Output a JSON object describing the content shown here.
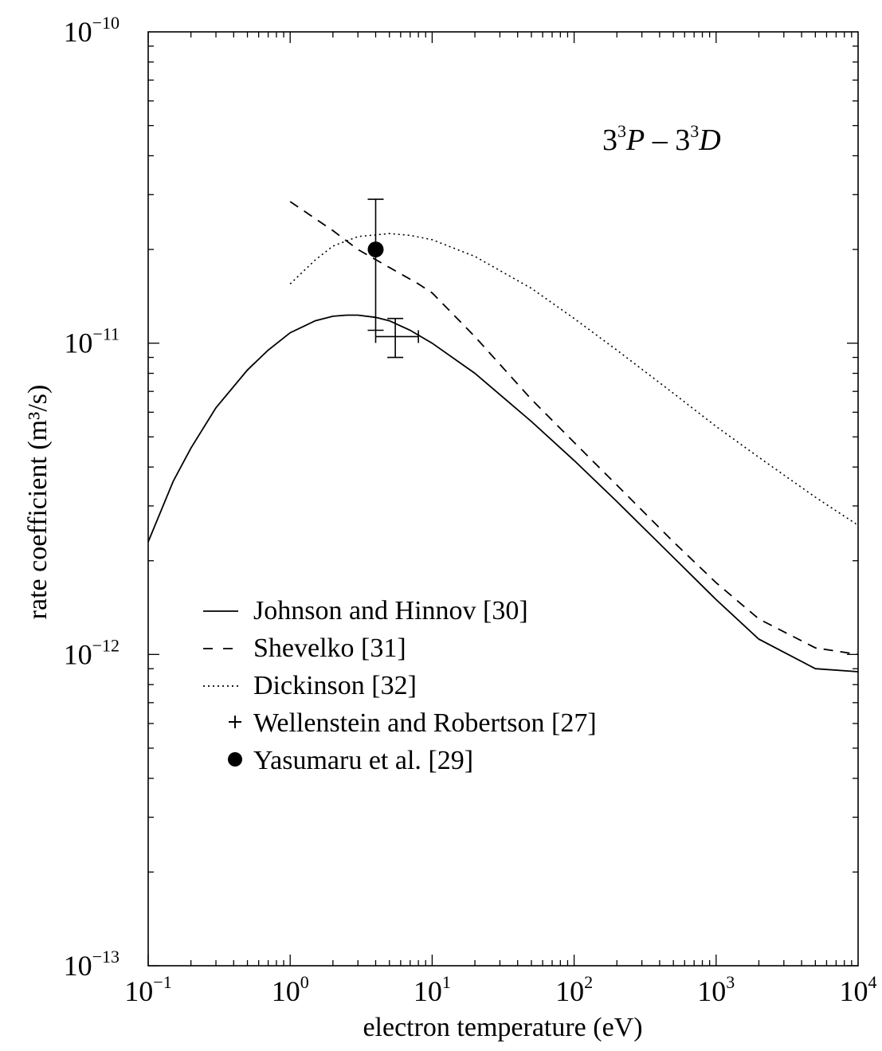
{
  "chart_data": {
    "type": "line",
    "title": "",
    "annotation": {
      "base": "3",
      "sup1": "3",
      "p": "P",
      "dash": " – ",
      "base2": "3",
      "sup2": "3",
      "d": "D"
    },
    "xlabel": "electron temperature (eV)",
    "ylabel": "rate coefficient (m³/s)",
    "x_scale": "log",
    "y_scale": "log",
    "xlim": [
      0.1,
      10000
    ],
    "ylim": [
      1e-13,
      1e-10
    ],
    "x_ticks": [
      {
        "value": 0.1,
        "base": "10",
        "exp": "−1"
      },
      {
        "value": 1,
        "base": "10",
        "exp": "0"
      },
      {
        "value": 10,
        "base": "10",
        "exp": "1"
      },
      {
        "value": 100,
        "base": "10",
        "exp": "2"
      },
      {
        "value": 1000,
        "base": "10",
        "exp": "3"
      },
      {
        "value": 10000,
        "base": "10",
        "exp": "4"
      }
    ],
    "y_ticks": [
      {
        "value": 1e-10,
        "base": "10",
        "exp": "−10"
      },
      {
        "value": 1e-11,
        "base": "10",
        "exp": "−11"
      },
      {
        "value": 1e-12,
        "base": "10",
        "exp": "−12"
      },
      {
        "value": 1e-13,
        "base": "10",
        "exp": "−13"
      }
    ],
    "grid": false,
    "legend_position": "lower-left",
    "series": [
      {
        "name": "Johnson and Hinnov [30]",
        "style": "solid",
        "x": [
          0.1,
          0.15,
          0.2,
          0.3,
          0.5,
          0.7,
          1,
          1.5,
          2,
          2.5,
          3,
          4,
          5,
          7,
          10,
          20,
          50,
          100,
          200,
          500,
          1000,
          2000,
          5000,
          10000
        ],
        "y": [
          2.3e-12,
          3.6e-12,
          4.6e-12,
          6.2e-12,
          8.2e-12,
          9.5e-12,
          1.08e-11,
          1.18e-11,
          1.22e-11,
          1.23e-11,
          1.23e-11,
          1.21e-11,
          1.18e-11,
          1.1e-11,
          1e-11,
          8e-12,
          5.6e-12,
          4.2e-12,
          3.1e-12,
          2.05e-12,
          1.5e-12,
          1.12e-12,
          9e-13,
          8.8e-13
        ]
      },
      {
        "name": "Shevelko [31]",
        "style": "dashed",
        "x": [
          1,
          2,
          3,
          5,
          8,
          10,
          20,
          50,
          100,
          200,
          500,
          1000,
          2000,
          5000,
          10000
        ],
        "y": [
          2.85e-11,
          2.3e-11,
          2e-11,
          1.75e-11,
          1.55e-11,
          1.45e-11,
          1.05e-11,
          6.6e-12,
          4.8e-12,
          3.5e-12,
          2.3e-12,
          1.7e-12,
          1.3e-12,
          1.05e-12,
          1e-12
        ]
      },
      {
        "name": "Dickinson [32]",
        "style": "dotted",
        "x": [
          1,
          1.5,
          2,
          3,
          5,
          7,
          10,
          20,
          50,
          100,
          200,
          500,
          1000,
          2000,
          5000,
          10000
        ],
        "y": [
          1.55e-11,
          1.85e-11,
          2.05e-11,
          2.2e-11,
          2.25e-11,
          2.22e-11,
          2.15e-11,
          1.9e-11,
          1.5e-11,
          1.2e-11,
          9.5e-12,
          6.9e-12,
          5.4e-12,
          4.3e-12,
          3.2e-12,
          2.6e-12
        ]
      },
      {
        "name": "Wellenstein and Robertson [27]",
        "style": "plus",
        "x": [
          5.5
        ],
        "y": [
          1.05e-11
        ],
        "xerr": [
          [
            4.0,
            8.0
          ]
        ],
        "yerr": [
          [
            9e-12,
            1.2e-11
          ]
        ]
      },
      {
        "name": "Yasumaru et al. [29]",
        "style": "dot",
        "x": [
          4.0
        ],
        "y": [
          2e-11
        ],
        "yerr": [
          [
            1.1e-11,
            2.9e-11
          ]
        ]
      }
    ]
  },
  "legend": {
    "items": [
      {
        "symbol": "solid",
        "label": "Johnson and Hinnov [30]"
      },
      {
        "symbol": "dashed",
        "label": "Shevelko [31]"
      },
      {
        "symbol": "dotted",
        "label": "Dickinson [32]"
      },
      {
        "symbol": "plus",
        "label": "Wellenstein and Robertson [27]"
      },
      {
        "symbol": "dot",
        "label": "Yasumaru et al. [29]"
      }
    ]
  }
}
